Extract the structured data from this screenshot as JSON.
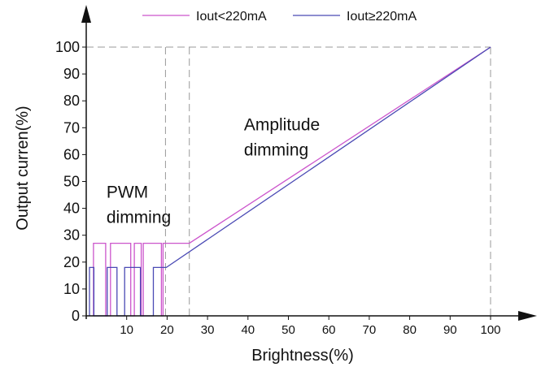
{
  "chart_data": {
    "type": "line",
    "xlabel": "Brightness(%)",
    "ylabel": "Output curren(%)",
    "xlim": [
      0,
      100
    ],
    "ylim": [
      0,
      100
    ],
    "x_ticks": [
      "10",
      "20",
      "30",
      "40",
      "50",
      "60",
      "70",
      "80",
      "90",
      "100"
    ],
    "y_ticks": [
      "0",
      "10",
      "20",
      "30",
      "40",
      "50",
      "60",
      "70",
      "80",
      "90",
      "100"
    ],
    "grid": false,
    "legend_position": "top",
    "series": [
      {
        "name": "Iout<220mA",
        "color": "#cc55cc",
        "points": [
          [
            1.8,
            0
          ],
          [
            1.8,
            27
          ],
          [
            4.8,
            27
          ],
          [
            4.8,
            0
          ],
          [
            6.0,
            0
          ],
          [
            6.0,
            27
          ],
          [
            11.0,
            27
          ],
          [
            11.0,
            0
          ],
          [
            11.9,
            0
          ],
          [
            11.9,
            27
          ],
          [
            13.6,
            27
          ],
          [
            13.6,
            0
          ],
          [
            14.1,
            0
          ],
          [
            14.1,
            27
          ],
          [
            18.6,
            27
          ],
          [
            18.6,
            0
          ],
          [
            19.0,
            0
          ],
          [
            19.0,
            27
          ],
          [
            25.5,
            27
          ],
          [
            100,
            100
          ]
        ]
      },
      {
        "name": "Iout≥220mA",
        "color": "#4a4ab4",
        "points": [
          [
            0.8,
            0
          ],
          [
            0.8,
            18
          ],
          [
            1.9,
            18
          ],
          [
            1.9,
            0
          ],
          [
            5.2,
            0
          ],
          [
            5.2,
            18
          ],
          [
            7.6,
            18
          ],
          [
            7.6,
            0
          ],
          [
            9.5,
            0
          ],
          [
            9.5,
            18
          ],
          [
            13.4,
            18
          ],
          [
            13.4,
            0
          ],
          [
            16.6,
            0
          ],
          [
            16.6,
            18
          ],
          [
            19.8,
            18
          ],
          [
            100,
            100
          ]
        ]
      }
    ],
    "reference_lines": [
      {
        "x": 19.6,
        "y": 100,
        "color": "#999999"
      },
      {
        "x": 25.5,
        "y": 100,
        "color": "#999999"
      },
      {
        "x": 100,
        "y": 100,
        "color": "#999999"
      }
    ],
    "annotations": [
      {
        "lines": [
          "PWM",
          "dimming"
        ],
        "x": 5,
        "y": 44
      },
      {
        "lines": [
          "Amplitude",
          "dimming"
        ],
        "x": 39,
        "y": 69
      }
    ]
  }
}
